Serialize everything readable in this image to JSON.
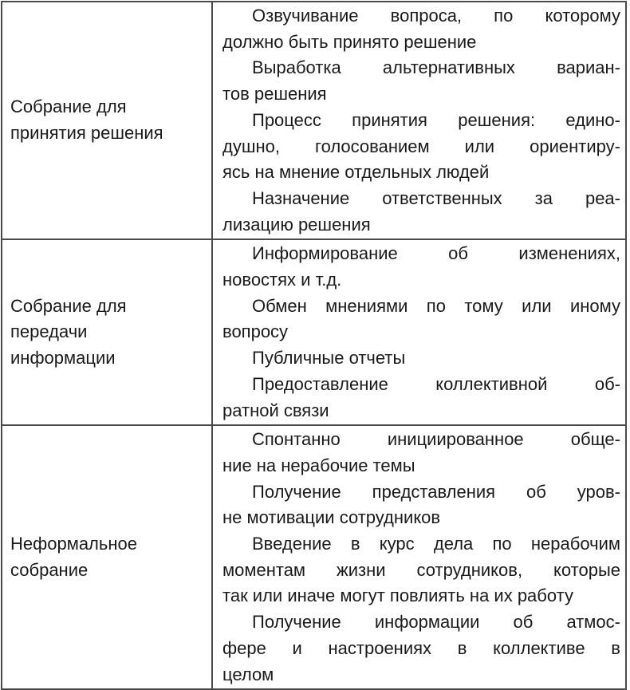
{
  "rows": [
    {
      "title_lines": [
        "Собрание для",
        "принятия решения"
      ],
      "items": [
        [
          "Озвучивание вопроса, по которому",
          "должно быть принято решение"
        ],
        [
          "Выработка альтернативных вариан-",
          "тов решения"
        ],
        [
          "Процесс принятия решения: едино-",
          "душно, голосованием или ориентиру-",
          "ясь на мнение отдельных людей"
        ],
        [
          "Назначение ответственных за реа-",
          "лизацию решения"
        ]
      ]
    },
    {
      "title_lines": [
        "Собрание для",
        "передачи",
        "информации"
      ],
      "items": [
        [
          "Информирование об изменениях,",
          "новостях и т.д."
        ],
        [
          "Обмен мнениями по тому или иному",
          "вопросу"
        ],
        [
          "Публичные отчеты"
        ],
        [
          "Предоставление коллективной об-",
          "ратной связи"
        ]
      ]
    },
    {
      "title_lines": [
        "Неформальное",
        "собрание"
      ],
      "items": [
        [
          "Спонтанно инициированное обще-",
          "ние на нерабочие темы"
        ],
        [
          "Получение представления об уров-",
          "не мотивации сотрудников"
        ],
        [
          "Введение в курс дела по нерабочим",
          "моментам жизни сотрудников, которые",
          "так или иначе могут повлиять на их работу"
        ],
        [
          "Получение информации об атмос-",
          "фере и настроениях в коллективе в",
          "целом"
        ]
      ]
    }
  ]
}
